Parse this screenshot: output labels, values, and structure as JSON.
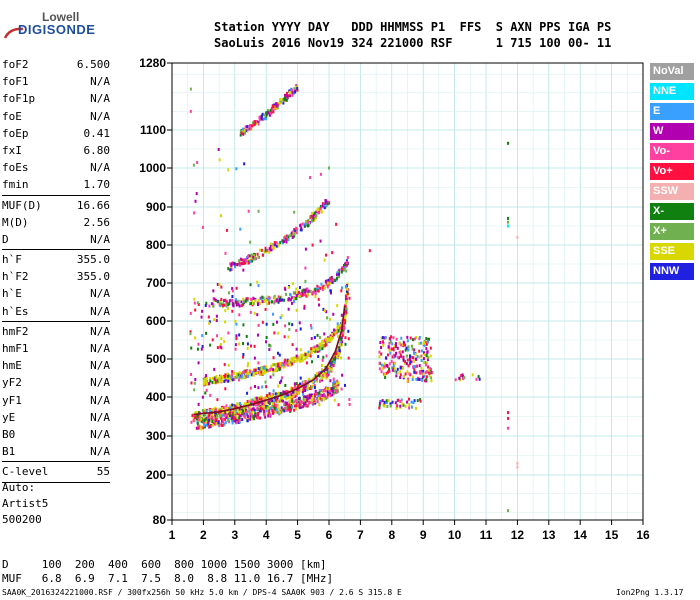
{
  "logo": {
    "line1": "Lowell",
    "line2": "DIGISONDE"
  },
  "header": {
    "line1": "Station YYYY DAY   DDD HHMMSS P1  FFS  S AXN PPS IGA PS",
    "line2": "SaoLuis 2016 Nov19 324 221000 RSF      1 715 100 00- 11"
  },
  "params_group1": [
    {
      "key": "foF2",
      "value": "6.500"
    },
    {
      "key": "foF1",
      "value": "N/A"
    },
    {
      "key": "foF1p",
      "value": "N/A"
    },
    {
      "key": "foE",
      "value": "N/A"
    },
    {
      "key": "foEp",
      "value": "0.41"
    },
    {
      "key": "fxI",
      "value": "6.80"
    },
    {
      "key": "foEs",
      "value": "N/A"
    },
    {
      "key": "fmin",
      "value": "1.70"
    }
  ],
  "params_group2": [
    {
      "key": "MUF(D)",
      "value": "16.66"
    },
    {
      "key": "M(D)",
      "value": "2.56"
    },
    {
      "key": "D",
      "value": "N/A"
    }
  ],
  "params_group3": [
    {
      "key": "h`F",
      "value": "355.0"
    },
    {
      "key": "h`F2",
      "value": "355.0"
    },
    {
      "key": "h`E",
      "value": "N/A"
    },
    {
      "key": "h`Es",
      "value": "N/A"
    }
  ],
  "params_group4": [
    {
      "key": "hmF2",
      "value": "N/A"
    },
    {
      "key": "hmF1",
      "value": "N/A"
    },
    {
      "key": "hmE",
      "value": "N/A"
    },
    {
      "key": "yF2",
      "value": "N/A"
    },
    {
      "key": "yF1",
      "value": "N/A"
    },
    {
      "key": "yE",
      "value": "N/A"
    },
    {
      "key": "B0",
      "value": "N/A"
    },
    {
      "key": "B1",
      "value": "N/A"
    }
  ],
  "params_group5": [
    {
      "key": "C-level",
      "value": "55"
    }
  ],
  "auto": {
    "line1": "Auto:",
    "line2": "Artist5",
    "line3": "500200"
  },
  "muf_table": {
    "line1": "D     100  200  400  600  800 1000 1500 3000 [km]",
    "line2": "MUF   6.8  6.9  7.1  7.5  8.0  8.8 11.0 16.7 [MHz]"
  },
  "footer": {
    "left": "SAA0K_2016324221000.RSF / 300fx256h 50 kHz 5.0 km / DPS-4 SAA0K 903 / 2.6 S 315.8 E",
    "right": "Ion2Png 1.3.17"
  },
  "legend": [
    {
      "label": "NoVal",
      "color": "#a0a0a0"
    },
    {
      "label": "NNE",
      "color": "#00e5ff"
    },
    {
      "label": "E",
      "color": "#3aa0ff"
    },
    {
      "label": "W",
      "color": "#b000b0"
    },
    {
      "label": "Vo-",
      "color": "#ff40a0"
    },
    {
      "label": "Vo+",
      "color": "#ff1040"
    },
    {
      "label": "SSW",
      "color": "#f4b0b0"
    },
    {
      "label": "X-",
      "color": "#108010"
    },
    {
      "label": "X+",
      "color": "#70b050"
    },
    {
      "label": "SSE",
      "color": "#d8d800"
    },
    {
      "label": "NNW",
      "color": "#2020e0"
    }
  ],
  "chart_data": {
    "type": "scatter",
    "title": "",
    "xlabel": "",
    "ylabel": "",
    "xlim": [
      1,
      16
    ],
    "ylim": [
      80,
      1280
    ],
    "x_ticks": [
      1,
      2,
      3,
      4,
      5,
      6,
      7,
      8,
      9,
      10,
      11,
      12,
      13,
      14,
      15,
      16
    ],
    "y_ticks": [
      80,
      200,
      300,
      400,
      500,
      600,
      700,
      800,
      900,
      1000,
      1100,
      1280
    ],
    "grid": true,
    "legend_position": "right",
    "y_scale": "nonlinear",
    "trace": {
      "name": "",
      "x": [
        1.7,
        2.0,
        2.5,
        3.0,
        3.5,
        4.0,
        4.5,
        5.0,
        5.5,
        5.9,
        6.2,
        6.4,
        6.5
      ],
      "y": [
        355,
        358,
        362,
        370,
        380,
        392,
        405,
        422,
        445,
        475,
        520,
        575,
        640
      ]
    },
    "traces": [
      {
        "name": "O-trace",
        "points": [
          [
            1.6,
            345
          ],
          [
            2.0,
            352
          ],
          [
            2.5,
            360
          ],
          [
            3.0,
            368
          ],
          [
            3.5,
            378
          ],
          [
            4.0,
            390
          ],
          [
            4.5,
            402
          ],
          [
            5.0,
            418
          ],
          [
            5.5,
            440
          ],
          [
            6.0,
            470
          ],
          [
            6.3,
            520
          ],
          [
            6.5,
            600
          ],
          [
            6.6,
            690
          ]
        ]
      },
      {
        "name": "X-trace",
        "points": [
          [
            1.8,
            330
          ],
          [
            2.4,
            338
          ],
          [
            3.0,
            346
          ],
          [
            3.6,
            356
          ],
          [
            4.2,
            366
          ],
          [
            4.8,
            378
          ],
          [
            5.4,
            392
          ],
          [
            5.9,
            410
          ],
          [
            6.3,
            430
          ]
        ]
      },
      {
        "name": "2F trace",
        "points": [
          [
            2.0,
            440
          ],
          [
            2.6,
            448
          ],
          [
            3.2,
            458
          ],
          [
            3.8,
            468
          ],
          [
            4.4,
            480
          ],
          [
            5.0,
            498
          ],
          [
            5.5,
            520
          ],
          [
            6.0,
            550
          ],
          [
            6.5,
            600
          ]
        ]
      },
      {
        "name": "3F trace",
        "points": [
          [
            2.2,
            645
          ],
          [
            3.0,
            648
          ],
          [
            3.8,
            652
          ],
          [
            4.6,
            660
          ],
          [
            5.2,
            672
          ],
          [
            5.8,
            690
          ],
          [
            6.3,
            720
          ],
          [
            6.6,
            760
          ]
        ]
      },
      {
        "name": "4F trace",
        "points": [
          [
            2.8,
            740
          ],
          [
            3.4,
            760
          ],
          [
            4.0,
            785
          ],
          [
            4.6,
            815
          ],
          [
            5.2,
            850
          ],
          [
            5.6,
            880
          ],
          [
            6.0,
            920
          ]
        ]
      },
      {
        "name": "5F trace",
        "points": [
          [
            3.2,
            1095
          ],
          [
            3.7,
            1120
          ],
          [
            4.2,
            1155
          ],
          [
            4.6,
            1185
          ],
          [
            5.0,
            1215
          ]
        ]
      }
    ],
    "clusters": [
      {
        "x": [
          7.6,
          8.4
        ],
        "y": [
          450,
          560
        ]
      },
      {
        "x": [
          8.4,
          9.3
        ],
        "y": [
          440,
          560
        ]
      },
      {
        "x": [
          10.0,
          10.8
        ],
        "y": [
          445,
          460
        ]
      },
      {
        "x": [
          7.6,
          9.0
        ],
        "y": [
          370,
          395
        ]
      }
    ]
  }
}
